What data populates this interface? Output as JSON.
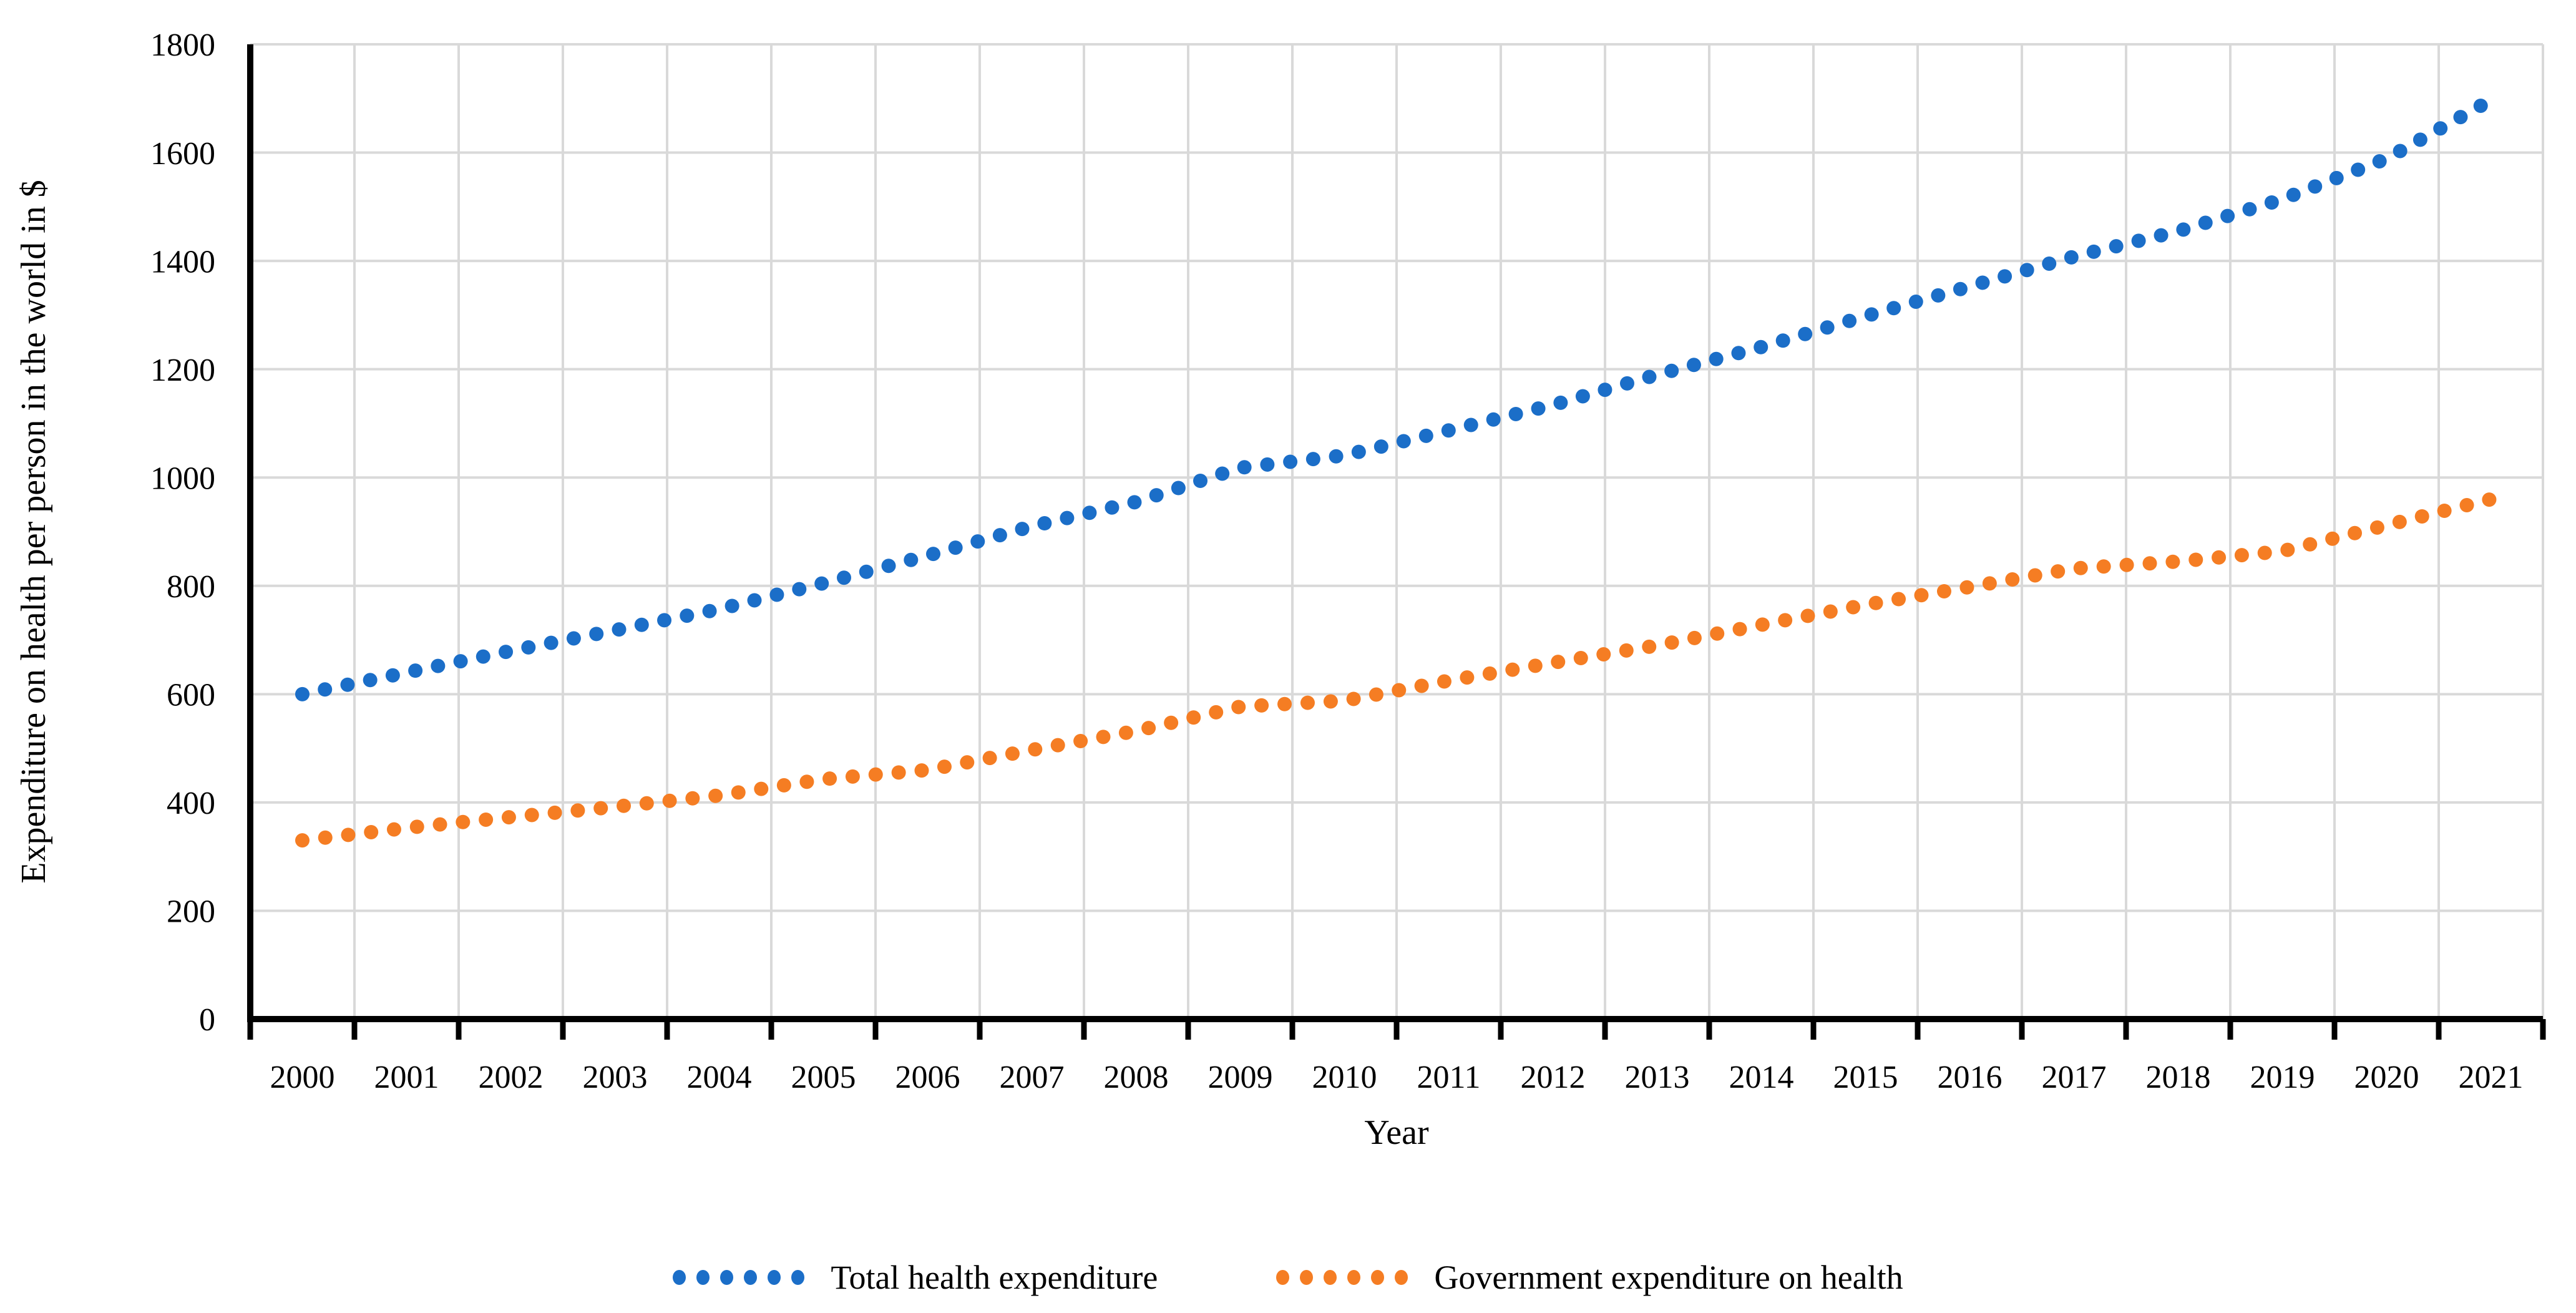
{
  "chart_data": {
    "type": "line",
    "line_style": "dotted",
    "x": [
      2000,
      2001,
      2002,
      2003,
      2004,
      2005,
      2006,
      2007,
      2008,
      2009,
      2010,
      2011,
      2012,
      2013,
      2014,
      2015,
      2016,
      2017,
      2018,
      2019,
      2020,
      2021
    ],
    "series": [
      {
        "name": "Total health expenditure",
        "color": "#1B6EC8",
        "values": [
          600,
          640,
          680,
          718,
          757,
          805,
          856,
          910,
          955,
          1018,
          1041,
          1087,
          1134,
          1190,
          1241,
          1298,
          1353,
          1408,
          1455,
          1514,
          1589,
          1697
        ]
      },
      {
        "name": "Government expenditure on health",
        "color": "#F57D23",
        "values": [
          330,
          353,
          373,
          392,
          413,
          443,
          460,
          497,
          532,
          577,
          588,
          625,
          658,
          690,
          728,
          765,
          798,
          832,
          845,
          864,
          912,
          960
        ]
      }
    ],
    "xlabel": "Year",
    "ylabel": "Expenditure on health per person in the world in $",
    "ylim": [
      0,
      1800
    ],
    "ytick_step": 200,
    "y_tick_labels": [
      "0",
      "200",
      "400",
      "600",
      "800",
      "1000",
      "1200",
      "1400",
      "1600",
      "1800"
    ],
    "grid": "both",
    "gridline_color": "#D9D9D9",
    "axis_color": "#000000",
    "legend_position": "bottom"
  }
}
